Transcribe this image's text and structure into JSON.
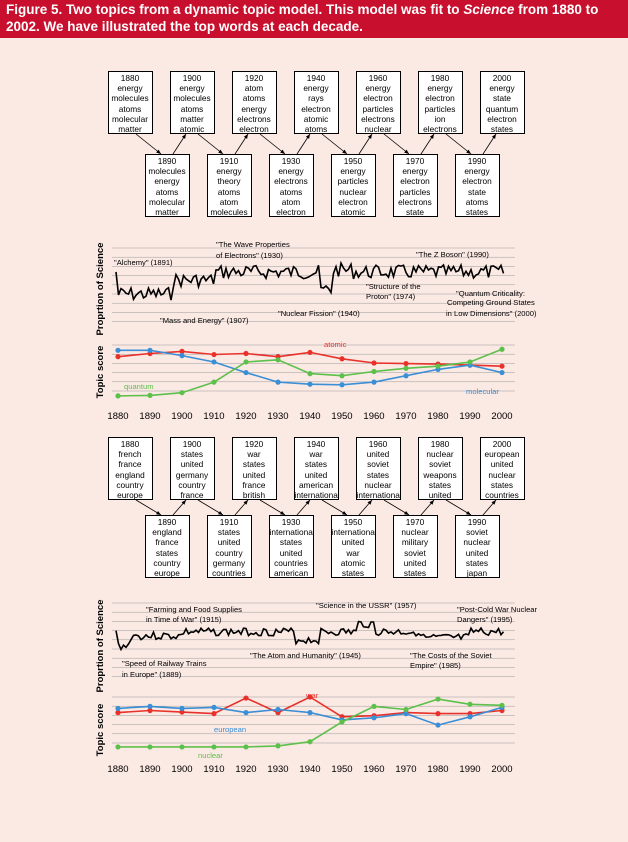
{
  "caption": {
    "part1": "Figure 5. Two topics from a dynamic topic model. This model was fit to ",
    "journal": "Science",
    "part2": " from 1880 to 2002. We have illustrated the top words at each decade."
  },
  "years": [
    "1880",
    "1890",
    "1900",
    "1910",
    "1920",
    "1930",
    "1940",
    "1950",
    "1960",
    "1970",
    "1980",
    "1990",
    "2000"
  ],
  "topic1": {
    "words": [
      {
        "decade": "1880",
        "words": [
          "energy",
          "molecules",
          "atoms",
          "molecular",
          "matter"
        ]
      },
      {
        "decade": "1890",
        "words": [
          "molecules",
          "energy",
          "atoms",
          "molecular",
          "matter"
        ]
      },
      {
        "decade": "1900",
        "words": [
          "energy",
          "molecules",
          "atoms",
          "matter",
          "atomic"
        ]
      },
      {
        "decade": "1910",
        "words": [
          "energy",
          "theory",
          "atoms",
          "atom",
          "molecules"
        ]
      },
      {
        "decade": "1920",
        "words": [
          "atom",
          "atoms",
          "energy",
          "electrons",
          "electron"
        ]
      },
      {
        "decade": "1930",
        "words": [
          "energy",
          "electrons",
          "atoms",
          "atom",
          "electron"
        ]
      },
      {
        "decade": "1940",
        "words": [
          "energy",
          "rays",
          "electron",
          "atomic",
          "atoms"
        ]
      },
      {
        "decade": "1950",
        "words": [
          "energy",
          "particles",
          "nuclear",
          "electron",
          "atomic"
        ]
      },
      {
        "decade": "1960",
        "words": [
          "energy",
          "electron",
          "particles",
          "electrons",
          "nuclear"
        ]
      },
      {
        "decade": "1970",
        "words": [
          "energy",
          "electron",
          "particles",
          "electrons",
          "state"
        ]
      },
      {
        "decade": "1980",
        "words": [
          "energy",
          "electron",
          "particles",
          "ion",
          "electrons"
        ]
      },
      {
        "decade": "1990",
        "words": [
          "energy",
          "electron",
          "state",
          "atoms",
          "states"
        ]
      },
      {
        "decade": "2000",
        "words": [
          "energy",
          "state",
          "quantum",
          "electron",
          "states"
        ]
      }
    ],
    "proportion_ylabel": "Proprtion of Science",
    "score_ylabel": "Topic score",
    "annotations": [
      "\"Alchemy\" (1891)",
      "\"The Wave Properties",
      "of Electrons\" (1930)",
      "\"The Z Boson\" (1990)",
      "\"Mass and Energy\" (1907)",
      "\"Nuclear Fission\" (1940)",
      "\"Structure of the",
      "Proton\" (1974)",
      "\"Quantum Criticality:",
      "Competing Ground States",
      "in Low Dimensions\" (2000)"
    ],
    "series_labels": {
      "atomic": "atomic",
      "quantum": "quantum",
      "molecular": "molecular"
    }
  },
  "topic2": {
    "words": [
      {
        "decade": "1880",
        "words": [
          "french",
          "france",
          "england",
          "country",
          "europe"
        ]
      },
      {
        "decade": "1890",
        "words": [
          "england",
          "france",
          "states",
          "country",
          "europe"
        ]
      },
      {
        "decade": "1900",
        "words": [
          "states",
          "united",
          "germany",
          "country",
          "france"
        ]
      },
      {
        "decade": "1910",
        "words": [
          "states",
          "united",
          "country",
          "germany",
          "countries"
        ]
      },
      {
        "decade": "1920",
        "words": [
          "war",
          "states",
          "united",
          "france",
          "british"
        ]
      },
      {
        "decade": "1930",
        "words": [
          "international",
          "states",
          "united",
          "countries",
          "american"
        ]
      },
      {
        "decade": "1940",
        "words": [
          "war",
          "states",
          "united",
          "american",
          "international"
        ]
      },
      {
        "decade": "1950",
        "words": [
          "international",
          "united",
          "war",
          "atomic",
          "states"
        ]
      },
      {
        "decade": "1960",
        "words": [
          "united",
          "soviet",
          "states",
          "nuclear",
          "international"
        ]
      },
      {
        "decade": "1970",
        "words": [
          "nuclear",
          "military",
          "soviet",
          "united",
          "states"
        ]
      },
      {
        "decade": "1980",
        "words": [
          "nuclear",
          "soviet",
          "weapons",
          "states",
          "united"
        ]
      },
      {
        "decade": "1990",
        "words": [
          "soviet",
          "nuclear",
          "united",
          "states",
          "japan"
        ]
      },
      {
        "decade": "2000",
        "words": [
          "european",
          "united",
          "nuclear",
          "states",
          "countries"
        ]
      }
    ],
    "proportion_ylabel": "Proprtion of Science",
    "score_ylabel": "Topic score",
    "annotations": [
      "\"Farming and Food Supplies",
      "in Time of War\" (1915)",
      "\"Science in the USSR\" (1957)",
      "\"Post-Cold War Nuclear",
      "Dangers\" (1995)",
      "\"Speed of Railway Trains",
      "in Europe\" (1889)",
      "\"The Atom and Humanity\" (1945)",
      "\"The Costs of the Soviet",
      "Empire\" (1985)"
    ],
    "series_labels": {
      "war": "war",
      "european": "european",
      "nuclear": "nuclear"
    }
  },
  "colors": {
    "red": "#e8312a",
    "blue": "#3a8fd6",
    "green": "#5cc04a",
    "background": "#fbe9e4",
    "caption_bg": "#c8102e"
  },
  "chart_data": [
    {
      "type": "line",
      "title": "",
      "ylabel": "Topic score",
      "x": [
        1880,
        1890,
        1900,
        1910,
        1920,
        1930,
        1940,
        1950,
        1960,
        1970,
        1980,
        1990,
        2000
      ],
      "series": [
        {
          "name": "atomic",
          "color": "red",
          "values": [
            0.78,
            0.84,
            0.88,
            0.82,
            0.84,
            0.78,
            0.86,
            0.74,
            0.66,
            0.65,
            0.64,
            0.62,
            0.6
          ]
        },
        {
          "name": "molecular",
          "color": "blue",
          "values": [
            0.9,
            0.9,
            0.8,
            0.68,
            0.48,
            0.3,
            0.26,
            0.25,
            0.3,
            0.42,
            0.54,
            0.62,
            0.48
          ]
        },
        {
          "name": "quantum",
          "color": "green",
          "values": [
            0.04,
            0.05,
            0.1,
            0.3,
            0.68,
            0.72,
            0.46,
            0.42,
            0.5,
            0.56,
            0.6,
            0.68,
            0.92
          ]
        }
      ]
    },
    {
      "type": "line",
      "title": "",
      "ylabel": "Topic score",
      "x": [
        1880,
        1890,
        1900,
        1910,
        1920,
        1930,
        1940,
        1950,
        1960,
        1970,
        1980,
        1990,
        2000
      ],
      "series": [
        {
          "name": "war",
          "color": "red",
          "values": [
            0.7,
            0.74,
            0.71,
            0.68,
            0.98,
            0.7,
            1.0,
            0.62,
            0.64,
            0.7,
            0.68,
            0.68,
            0.74
          ]
        },
        {
          "name": "european",
          "color": "blue",
          "values": [
            0.78,
            0.82,
            0.78,
            0.8,
            0.7,
            0.76,
            0.7,
            0.56,
            0.6,
            0.68,
            0.46,
            0.62,
            0.8
          ]
        },
        {
          "name": "nuclear",
          "color": "green",
          "values": [
            0.04,
            0.04,
            0.04,
            0.04,
            0.04,
            0.06,
            0.14,
            0.52,
            0.82,
            0.76,
            0.96,
            0.86,
            0.84
          ]
        }
      ]
    }
  ]
}
